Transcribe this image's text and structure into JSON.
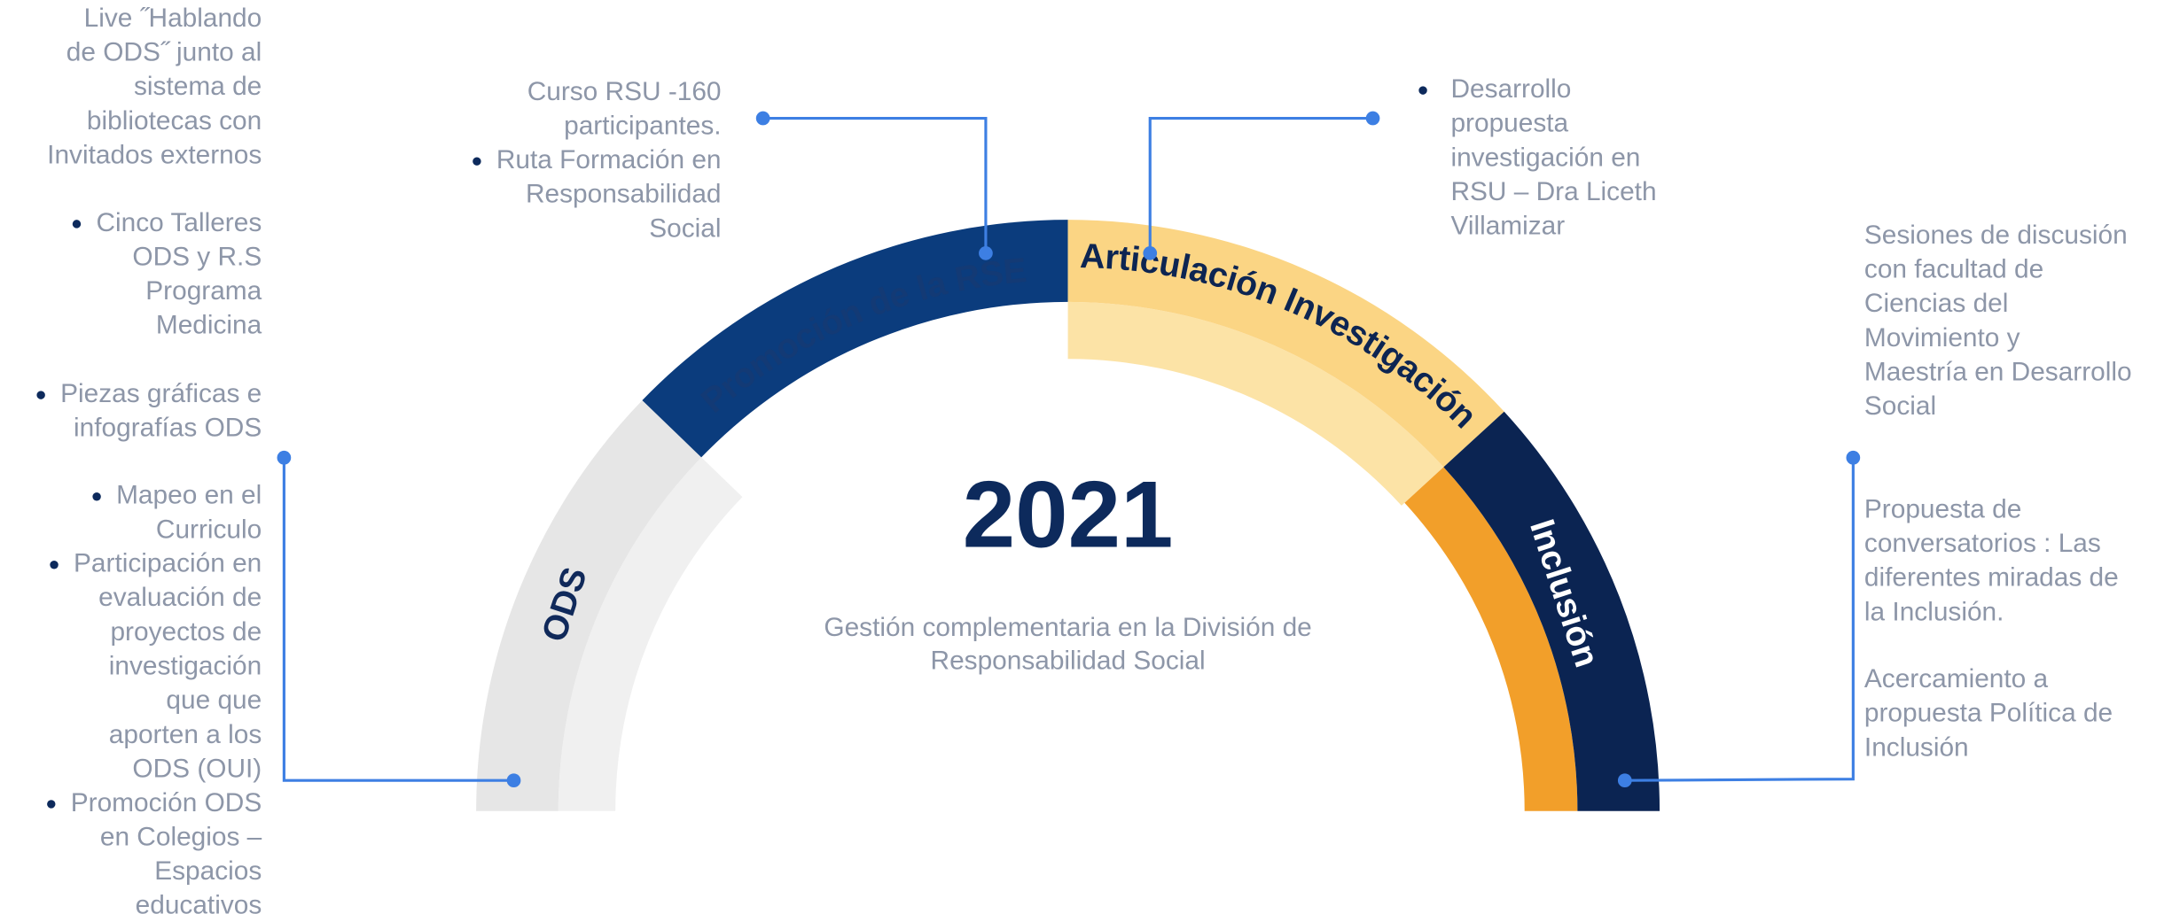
{
  "center": {
    "year": "2021",
    "subtitle": [
      "Gestión complementaria en  la División de",
      "Responsabilidad Social"
    ]
  },
  "segments": [
    {
      "label": "ODS"
    },
    {
      "label": "Promoción de la  RSE"
    },
    {
      "label": "Articulación Investigación"
    },
    {
      "label": "Inclusión"
    }
  ],
  "notes": {
    "left": [
      {
        "lines": [
          "Live ˝Hablando",
          "de ODS˝ junto al",
          "sistema de",
          "bibliotecas con",
          "Invitados externos"
        ]
      },
      {
        "lines": [
          "Cinco Talleres",
          "ODS y R.S",
          "Programa",
          "Medicina"
        ]
      },
      {
        "lines": [
          "Piezas gráficas e",
          "infografías ODS"
        ]
      },
      {
        "lines": [
          "Mapeo en el",
          "Curriculo"
        ]
      },
      {
        "lines": [
          "Participación en",
          "evaluación de",
          "proyectos de",
          "investigación",
          "que  que",
          "aporten a los",
          "ODS (OUI)"
        ]
      },
      {
        "lines": [
          "Promoción ODS",
          "en Colegios –",
          "Espacios",
          "educativos"
        ]
      }
    ],
    "top_left": [
      {
        "lines": [
          "Curso RSU -160",
          "participantes."
        ]
      },
      {
        "lines": [
          "Ruta Formación en",
          "Responsabilidad",
          "Social"
        ]
      }
    ],
    "top_right": [
      {
        "lines": [
          "Desarrollo",
          "propuesta",
          "investigación en",
          "RSU – Dra Liceth",
          "Villamizar"
        ]
      }
    ],
    "right": [
      {
        "lines": [
          "Sesiones de discusión",
          "con facultad de",
          "Ciencias del",
          "Movimiento  y",
          "Maestría en Desarrollo",
          "Social"
        ]
      },
      {
        "lines": [
          "Propuesta de",
          "conversatorios : Las",
          "diferentes miradas de",
          "la Inclusión."
        ]
      },
      {
        "lines": [
          "Acercamiento a",
          "propuesta Política de",
          "Inclusión"
        ]
      }
    ]
  }
}
